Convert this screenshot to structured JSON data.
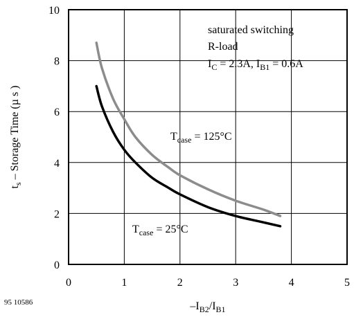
{
  "chart_data": {
    "type": "line",
    "xlim": [
      0,
      5
    ],
    "ylim": [
      0,
      10
    ],
    "x_ticks": [
      "0",
      "1",
      "2",
      "3",
      "4",
      "5"
    ],
    "y_ticks": [
      "0",
      "2",
      "4",
      "6",
      "8",
      "10"
    ],
    "grid": true,
    "xlabel": {
      "prefix": "–I",
      "sub1": "B2",
      "mid": "/I",
      "sub2": "B1"
    },
    "ylabel": {
      "pre": "t",
      "sub": "s",
      "post": " – Storage Time (µ s )"
    },
    "figure_id": "95 10586",
    "annotation": {
      "line1": "saturated switching",
      "line2": "R-load",
      "line3_a": "I",
      "line3_a_sub": "C",
      "line3_b": " = 2.3A, I",
      "line3_b_sub": "B1",
      "line3_c": " = 0.6A"
    },
    "series": [
      {
        "label_main": "T",
        "label_sub": "case",
        "label_value": " = 125°C",
        "color": "#8c8c8c",
        "x": [
          0.5,
          0.6,
          0.8,
          1.0,
          1.2,
          1.5,
          1.8,
          2.0,
          2.5,
          3.0,
          3.5,
          3.8
        ],
        "y": [
          8.7,
          7.7,
          6.5,
          5.7,
          5.0,
          4.3,
          3.8,
          3.5,
          2.95,
          2.5,
          2.15,
          1.9
        ]
      },
      {
        "label_main": "T",
        "label_sub": "case",
        "label_value": " = 25°C",
        "color": "#000000",
        "x": [
          0.5,
          0.6,
          0.8,
          1.0,
          1.2,
          1.5,
          1.8,
          2.0,
          2.5,
          3.0,
          3.5,
          3.8
        ],
        "y": [
          7.0,
          6.2,
          5.2,
          4.5,
          4.0,
          3.4,
          3.0,
          2.75,
          2.25,
          1.9,
          1.65,
          1.5
        ]
      }
    ]
  }
}
